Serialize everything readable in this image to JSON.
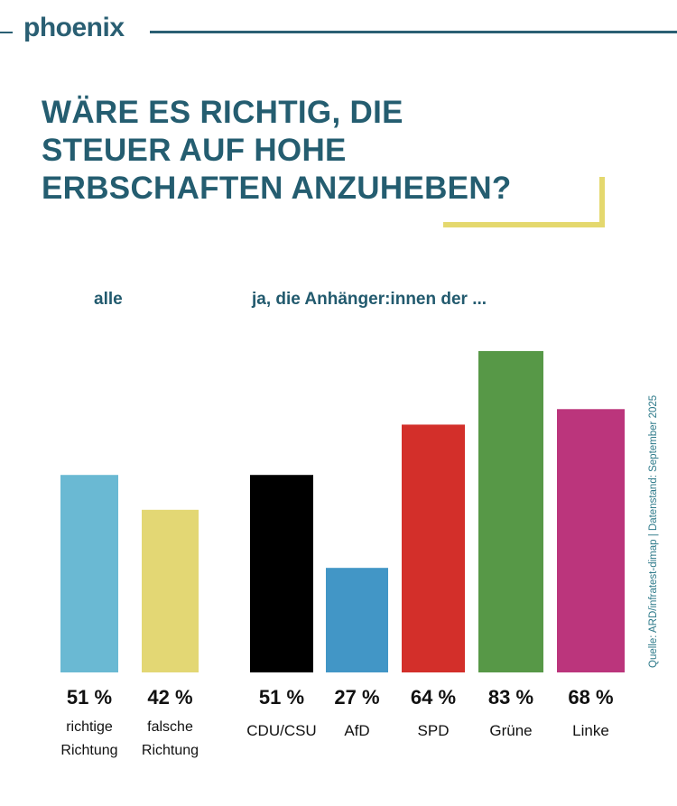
{
  "header": {
    "logo": "phoenix"
  },
  "title_lines": [
    "WÄRE ES RICHTIG, DIE",
    "STEUER AUF HOHE",
    "ERBSCHAFTEN ANZUHEBEN?"
  ],
  "source": "Quelle:  ARD/infratest-dimap | Datenstand: September 2025",
  "colors": {
    "brand": "#2a5f73",
    "accent": "#e4d86e"
  },
  "chart_data": {
    "type": "bar",
    "title": "WÄRE ES RICHTIG, DIE STEUER AUF HOHE ERBSCHAFTEN ANZUHEBEN?",
    "xlabel": "",
    "ylabel": "",
    "ylim": [
      0,
      100
    ],
    "grid": false,
    "unit": "%",
    "groups": [
      {
        "label": "alle",
        "bars": [
          {
            "category": "richtige Richtung",
            "lines": [
              "richtige",
              "Richtung"
            ],
            "value": 51,
            "label": "51 %",
            "color": "#6ab9d3"
          },
          {
            "category": "falsche Richtung",
            "lines": [
              "falsche",
              "Richtung"
            ],
            "value": 42,
            "label": "42 %",
            "color": "#e3d774"
          }
        ]
      },
      {
        "label": "ja, die Anhänger:innen der ...",
        "bars": [
          {
            "category": "CDU/CSU",
            "lines": [
              "CDU/CSU"
            ],
            "value": 51,
            "label": "51 %",
            "color": "#000000"
          },
          {
            "category": "AfD",
            "lines": [
              "AfD"
            ],
            "value": 27,
            "label": "27 %",
            "color": "#4296c6"
          },
          {
            "category": "SPD",
            "lines": [
              "SPD"
            ],
            "value": 64,
            "label": "64 %",
            "color": "#d32f2a"
          },
          {
            "category": "Grüne",
            "lines": [
              "Grüne"
            ],
            "value": 83,
            "label": "83 %",
            "color": "#579847"
          },
          {
            "category": "Linke",
            "lines": [
              "Linke"
            ],
            "value": 68,
            "label": "68 %",
            "color": "#bb357c"
          }
        ]
      }
    ]
  }
}
